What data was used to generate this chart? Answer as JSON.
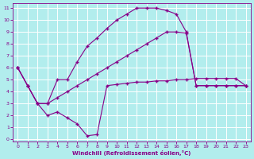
{
  "xlabel": "Windchill (Refroidissement éolien,°C)",
  "bg_color": "#b2eded",
  "line_color": "#880088",
  "grid_color": "#ffffff",
  "xlim": [
    0,
    23
  ],
  "ylim": [
    0,
    11
  ],
  "xticks": [
    0,
    1,
    2,
    3,
    4,
    5,
    6,
    7,
    8,
    9,
    10,
    11,
    12,
    13,
    14,
    15,
    16,
    17,
    18,
    19,
    20,
    21,
    22,
    23
  ],
  "yticks": [
    0,
    1,
    2,
    3,
    4,
    5,
    6,
    7,
    8,
    9,
    10,
    11
  ],
  "line1_x": [
    0,
    1,
    2,
    3,
    4,
    5,
    6,
    7,
    8,
    9,
    10,
    11,
    12,
    13,
    14,
    15,
    16,
    17,
    18,
    19,
    20,
    21,
    22,
    23
  ],
  "line1_y": [
    6.0,
    4.5,
    3.0,
    3.0,
    5.0,
    5.0,
    6.5,
    7.8,
    8.5,
    9.3,
    10.0,
    10.5,
    11.0,
    11.0,
    11.0,
    10.8,
    10.5,
    9.0,
    4.5,
    4.5,
    4.5,
    4.5,
    4.5,
    4.5
  ],
  "line2_x": [
    0,
    1,
    2,
    3,
    4,
    5,
    6,
    7,
    8,
    9,
    10,
    11,
    12,
    13,
    14,
    15,
    16,
    17,
    18,
    19,
    20,
    21,
    22,
    23
  ],
  "line2_y": [
    6.0,
    4.5,
    3.0,
    3.0,
    3.5,
    4.0,
    4.5,
    5.0,
    5.5,
    6.0,
    6.5,
    7.0,
    7.5,
    8.0,
    8.5,
    9.0,
    9.0,
    8.9,
    4.5,
    4.5,
    4.5,
    4.5,
    4.5,
    4.5
  ],
  "line3_x": [
    0,
    1,
    2,
    3,
    4,
    5,
    6,
    7,
    8,
    9,
    10,
    11,
    12,
    13,
    14,
    15,
    16,
    17,
    18,
    19,
    20,
    21,
    22,
    23
  ],
  "line3_y": [
    6.0,
    4.5,
    3.0,
    2.0,
    2.3,
    1.8,
    1.3,
    0.3,
    0.4,
    4.5,
    4.6,
    4.7,
    4.8,
    4.8,
    4.9,
    4.9,
    5.0,
    5.0,
    5.1,
    5.1,
    5.1,
    5.1,
    5.1,
    4.5
  ]
}
